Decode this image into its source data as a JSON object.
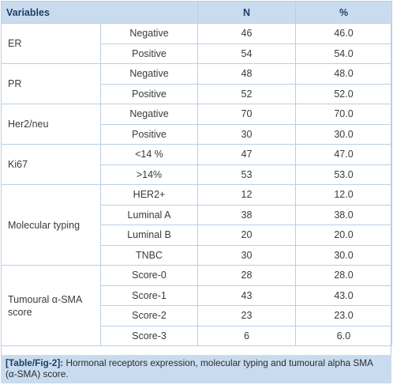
{
  "table": {
    "headers": [
      "Variables",
      "N",
      "%"
    ],
    "groups": [
      {
        "variable_lines": [
          "ER"
        ],
        "rows": [
          {
            "category": "Negative",
            "n": "46",
            "pct": "46.0"
          },
          {
            "category": "Positive",
            "n": "54",
            "pct": "54.0"
          }
        ]
      },
      {
        "variable_lines": [
          "PR"
        ],
        "rows": [
          {
            "category": "Negative",
            "n": "48",
            "pct": "48.0"
          },
          {
            "category": "Positive",
            "n": "52",
            "pct": "52.0"
          }
        ]
      },
      {
        "variable_lines": [
          "Her2/neu"
        ],
        "rows": [
          {
            "category": "Negative",
            "n": "70",
            "pct": "70.0"
          },
          {
            "category": "Positive",
            "n": "30",
            "pct": "30.0"
          }
        ]
      },
      {
        "variable_lines": [
          "Ki67"
        ],
        "rows": [
          {
            "category": "<14 %",
            "n": "47",
            "pct": "47.0"
          },
          {
            "category": ">14%",
            "n": "53",
            "pct": "53.0"
          }
        ]
      },
      {
        "variable_lines": [
          "Molecular typing"
        ],
        "rows": [
          {
            "category": "HER2+",
            "n": "12",
            "pct": "12.0"
          },
          {
            "category": "Luminal A",
            "n": "38",
            "pct": "38.0"
          },
          {
            "category": "Luminal B",
            "n": "20",
            "pct": "20.0"
          },
          {
            "category": "TNBC",
            "n": "30",
            "pct": "30.0"
          }
        ]
      },
      {
        "variable_lines": [
          "Tumoural α-SMA",
          "score"
        ],
        "rows": [
          {
            "category": "Score-0",
            "n": "28",
            "pct": "28.0"
          },
          {
            "category": "Score-1",
            "n": "43",
            "pct": "43.0"
          },
          {
            "category": "Score-2",
            "n": "23",
            "pct": "23.0"
          },
          {
            "category": "Score-3",
            "n": "6",
            "pct": "6.0"
          }
        ]
      }
    ]
  },
  "caption": {
    "ref": "[Table/Fig-2]:",
    "text": " Hormonal receptors expression, molecular typing and tumoural alpha SMA (α-SMA) score."
  }
}
